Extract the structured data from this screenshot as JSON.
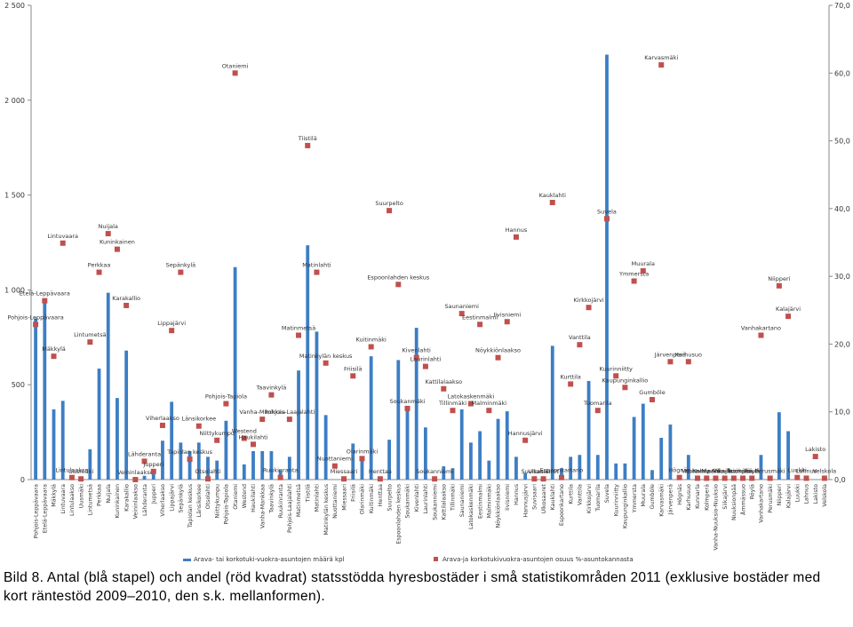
{
  "chart_data": {
    "type": "bar",
    "categories": [
      "Pohjois-Leppävaara",
      "Etelä-Leppävaara",
      "Mäkkylä",
      "Lintuvaara",
      "Lintulaakso",
      "Uusmäki",
      "Lintumetsä",
      "Perkkaa",
      "Nuijala",
      "Kuninkainen",
      "Karakallio",
      "Veininlaakso",
      "Lähderanta",
      "Jupperi",
      "Viherlaakso",
      "Lippajärvi",
      "Sepänkylä",
      "Tapiolan keskus",
      "Länsikorkee",
      "Otsolahti",
      "Niittykumpu",
      "Pohjois-Tapiola",
      "Otaniemi",
      "Westend",
      "Haukilahti",
      "Vanha-Mankkaa",
      "Taavinkylä",
      "Ruukinranta",
      "Pohjois-Laajalahti",
      "Matinmetsä",
      "Tiistilä",
      "Matinlahti",
      "Matinkylän keskus",
      "Nuottaniemi",
      "Miessaari",
      "Friisilä",
      "Olarinmäki",
      "Kuitinmäki",
      "Henttaa",
      "Suurpelto",
      "Espoonlahden keskus",
      "Soukanmäki",
      "Kivenlahti",
      "Laurinlahti",
      "Soukanniemi",
      "Kattilalaakso",
      "Tillinmäki",
      "Saunaniemi",
      "Latokaskenmäki",
      "Eestinmalmi",
      "Malminmäki",
      "Nöykkiönlaakso",
      "Iivisniemi",
      "Hannus",
      "Hannusjärvi",
      "Suvisaari",
      "Ulkosaaret",
      "Kauklahti",
      "Espoonkartano",
      "Kurttila",
      "Vanttila",
      "Kirkkojärvi",
      "Tuomarila",
      "Suvela",
      "Kuurinniitty",
      "Kaupunginkallio",
      "Ymmersta",
      "Muurala",
      "Gumböle",
      "Karvasmäki",
      "Järvenperä",
      "Högnäs",
      "Karhusuo",
      "Kunnarla",
      "Kolmperä",
      "Vanha-Nuuksio-Nuuksio",
      "Siikajärvi",
      "Nuuksionpää",
      "Ämmässuo",
      "Röylä",
      "Vanhakartano",
      "Perusmäki",
      "Niipperi",
      "Kalajärvi",
      "Luukki",
      "Lahnus",
      "Lakisto",
      "Velskola"
    ],
    "series": [
      {
        "name": "Arava- tai korkotuki-vuokra-asuntojen määrä kpl",
        "color": "#3d7ec4",
        "values": [
          850,
          940,
          370,
          415,
          0,
          0,
          160,
          585,
          985,
          430,
          680,
          0,
          20,
          30,
          205,
          410,
          195,
          150,
          195,
          120,
          100,
          310,
          1120,
          80,
          150,
          150,
          150,
          50,
          120,
          575,
          1235,
          780,
          340,
          0,
          0,
          190,
          110,
          650,
          0,
          210,
          630,
          380,
          800,
          275,
          0,
          70,
          60,
          370,
          195,
          255,
          100,
          320,
          360,
          120,
          35,
          0,
          0,
          705,
          60,
          120,
          130,
          520,
          130,
          2240,
          85,
          85,
          330,
          400,
          50,
          220,
          290,
          20,
          130,
          20,
          0,
          0,
          0,
          0,
          0,
          0,
          130,
          0,
          355,
          255,
          0,
          0,
          0,
          0
        ]
      },
      {
        "name": "Arava-ja korkotukivuokra-asuntojen osuus %-asuntokannasta",
        "color": "#c0504d",
        "axis": "y2",
        "marker": "square",
        "values": [
          22.9,
          26.4,
          18.2,
          34.9,
          0.3,
          0.1,
          20.3,
          30.6,
          36.3,
          34.0,
          25.7,
          0,
          2.7,
          1.2,
          8.0,
          22.0,
          30.6,
          3.0,
          7.9,
          0.1,
          5.8,
          11.2,
          60.0,
          6.1,
          5.2,
          8.9,
          12.5,
          0.3,
          8.9,
          21.3,
          49.3,
          30.6,
          17.2,
          2.0,
          0.1,
          15.3,
          3.1,
          19.6,
          0.1,
          39.7,
          28.8,
          10.5,
          18.0,
          16.7,
          0.1,
          13.4,
          10.2,
          24.5,
          11.2,
          22.9,
          10.2,
          18.0,
          23.3,
          35.8,
          5.8,
          0.1,
          0.1,
          40.9,
          0.3,
          14.1,
          19.9,
          25.4,
          10.2,
          38.5,
          15.3,
          13.6,
          29.3,
          30.8,
          11.8,
          61.2,
          17.4,
          0.3,
          17.4,
          0.2,
          0.2,
          0.2,
          0.2,
          0.2,
          0.2,
          0.2,
          21.3,
          0.2,
          28.6,
          24.1,
          0.3,
          0.2,
          3.4,
          0.2
        ]
      }
    ],
    "ylim": [
      0,
      2500
    ],
    "yticks": [
      0,
      500,
      {
        "value": 1000,
        "label": "1 000"
      },
      {
        "value": 1500,
        "label": "1 500"
      },
      {
        "value": 2000,
        "label": "2 000"
      },
      {
        "value": 2500,
        "label": "2 500"
      }
    ],
    "y2lim": [
      0,
      70
    ],
    "y2ticks": [
      {
        "value": 0,
        "label": "0,0"
      },
      {
        "value": 10,
        "label": "10,0"
      },
      {
        "value": 20,
        "label": "20,0"
      },
      {
        "value": 30,
        "label": "30,0"
      },
      {
        "value": 40,
        "label": "40,0"
      },
      {
        "value": 50,
        "label": "50,0"
      },
      {
        "value": 60,
        "label": "60,0"
      },
      {
        "value": 70,
        "label": "70,0"
      }
    ],
    "grid": false,
    "legend": "bottom",
    "caption": "Bild 8. Antal (blå stapel) och andel (röd kvadrat) statsstödda hyresbostäder i små statistikområden 2011 (exklusive bostäder med kort räntestöd 2009–2010, den s.k. mellanformen)."
  }
}
